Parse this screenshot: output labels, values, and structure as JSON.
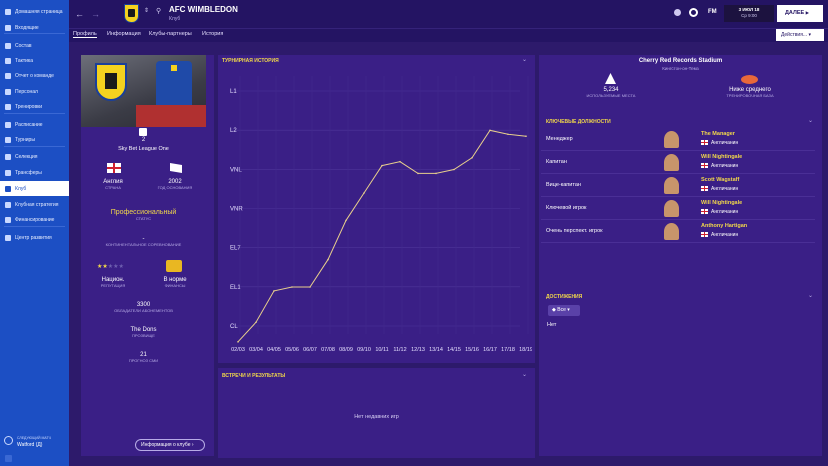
{
  "sidebar": {
    "items": [
      "Домашняя страница",
      "Входящие",
      "Состав",
      "Тактика",
      "Отчет о команде",
      "Персонал",
      "Тренировки",
      "Расписание",
      "Турниры",
      "Селекция",
      "Трансферы",
      "Клуб",
      "Клубная стратегия",
      "Финансирование",
      "Центр развития"
    ],
    "next_match_label": "СЛЕДУЮЩИЙ МАТЧ",
    "next_match": "Watford (Д)"
  },
  "header": {
    "club_name": "AFC WIMBLEDON",
    "subtitle": "Клуб",
    "date": "3 ИЮЛ 18",
    "time": "Ср 9:00",
    "continue": "ДАЛЕЕ",
    "fm": "FM"
  },
  "tabs": [
    "Профиль",
    "Информация",
    "Клубы-партнеры",
    "История"
  ],
  "actions": "Действия...",
  "profile": {
    "stars": "2",
    "league": "Sky Bet League One",
    "country": "Англия",
    "country_label": "СТРАНА",
    "founded": "2002",
    "founded_label": "ГОД ОСНОВАНИЯ",
    "status": "Профессиональный",
    "status_label": "СТАТУС",
    "continental": "-",
    "continental_label": "КОНТИНЕНТАЛЬНОЕ СОРЕВНОВАНИЕ",
    "reputation": "Национ.",
    "reputation_label": "РЕПУТАЦИЯ",
    "finances": "В норме",
    "finances_label": "ФИНАНСЫ",
    "season_tickets": "3300",
    "season_tickets_label": "ОБЛАДАТЕЛИ АБОНЕМЕНТОВ",
    "nickname": "The Dons",
    "nickname_label": "ПРОЗВИЩЕ",
    "projected": "21",
    "projected_label": "ПРОГНОЗ СМИ",
    "club_info_btn": "Информация о клубе"
  },
  "history": {
    "title": "ТУРНИРНАЯ ИСТОРИЯ"
  },
  "chart_data": {
    "type": "line",
    "categories": [
      "02/03",
      "03/04",
      "04/05",
      "05/06",
      "06/07",
      "07/08",
      "08/09",
      "09/10",
      "10/11",
      "11/12",
      "12/13",
      "13/14",
      "14/15",
      "15/16",
      "16/17",
      "17/18",
      "18/19"
    ],
    "y_levels": [
      "L1",
      "L2",
      "VNL",
      "VNR",
      "EL7",
      "EL1",
      "CL"
    ],
    "values": [
      6.2,
      5.7,
      4.9,
      4.8,
      4.8,
      4.1,
      3.1,
      2.4,
      1.7,
      1.6,
      1.9,
      1.9,
      1.8,
      1.5,
      0.8,
      0.9,
      0.95
    ],
    "title": "ТУРНИРНАЯ ИСТОРИЯ"
  },
  "fixtures": {
    "title": "ВСТРЕЧИ И РЕЗУЛЬТАТЫ",
    "empty": "Нет недавних игр"
  },
  "stadium": {
    "name": "Cherry Red Records Stadium",
    "location": "Кингстон-он-Темз",
    "capacity": "5,234",
    "capacity_label": "ИСПОЛЬЗУЕМЫЕ МЕСТА",
    "training": "Ниже среднего",
    "training_label": "ТРЕНИРОВОЧНАЯ БАЗА"
  },
  "positions": {
    "title": "КЛЮЧЕВЫЕ ДОЛЖНОСТИ",
    "rows": [
      {
        "role": "Менеджер",
        "name": "The Manager",
        "nat": "Англичанин"
      },
      {
        "role": "Капитан",
        "name": "Will Nightingale",
        "nat": "Англичанин"
      },
      {
        "role": "Вице-капитан",
        "name": "Scott Wagstaff",
        "nat": "Англичанин"
      },
      {
        "role": "Ключевой игрок",
        "name": "Will Nightingale",
        "nat": "Англичанин"
      },
      {
        "role": "Очень перспект. игрок",
        "name": "Anthony Hartigan",
        "nat": "Англичанин"
      }
    ]
  },
  "achievements": {
    "title": "ДОСТИЖЕНИЯ",
    "filter": "Все",
    "empty": "Нет"
  }
}
